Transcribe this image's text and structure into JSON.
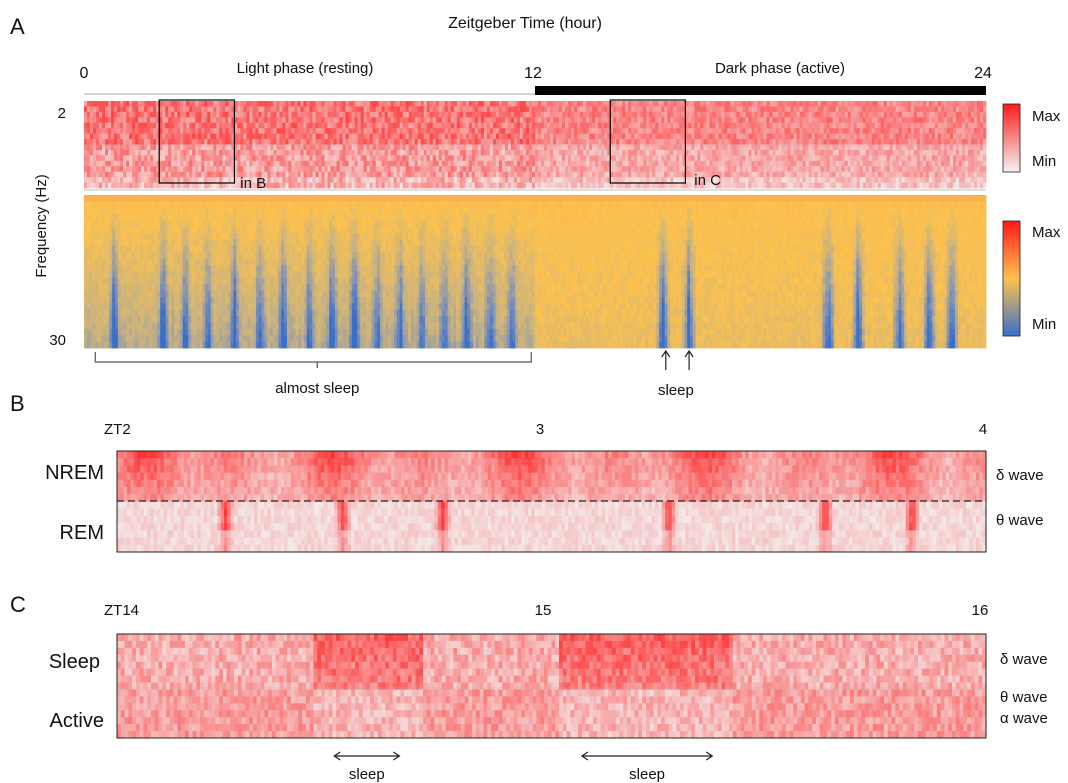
{
  "chart_data": [
    {
      "panel": "A",
      "type": "heatmap",
      "title": "Zeitgeber Time (hour)",
      "x_ticks": [
        "0",
        "12",
        "24"
      ],
      "x_range": [
        0,
        24
      ],
      "phase_labels": [
        "Light phase (resting)",
        "Dark phase (active)"
      ],
      "dark_phase_range": [
        12,
        24
      ],
      "ylabel": "Frequency (Hz)",
      "y_ticks": [
        "2",
        "30"
      ],
      "y_range": [
        2,
        30
      ],
      "inset_boxes": [
        {
          "label": "in B",
          "x_range": [
            2,
            4
          ]
        },
        {
          "label": "in C",
          "x_range": [
            14,
            16
          ]
        }
      ],
      "colorbars": [
        {
          "panel": "normalized-low",
          "max_label": "Max",
          "min_label": "Min",
          "colors": [
            "#f3f3f3",
            "#ff1a1a"
          ]
        },
        {
          "panel": "spectrogram",
          "max_label": "Max",
          "min_label": "Min",
          "colors": [
            "#3a6fc9",
            "#fdc24e",
            "#ff1a1a"
          ]
        }
      ],
      "sleep_bouts_zt": [
        0.8,
        2.1,
        2.7,
        3.3,
        4.0,
        4.7,
        5.3,
        6.0,
        6.6,
        7.2,
        7.8,
        8.4,
        9.0,
        9.6,
        10.2,
        10.8,
        11.4,
        15.4,
        16.1,
        19.8,
        20.6,
        21.7,
        22.5,
        23.1
      ],
      "annotations": [
        {
          "text": "almost sleep",
          "x_range": [
            0.3,
            11.9
          ]
        },
        {
          "text": "sleep",
          "x": [
            15.4,
            16.1
          ]
        }
      ]
    },
    {
      "panel": "B",
      "type": "heatmap",
      "x_ticks": [
        "ZT2",
        "3",
        "4"
      ],
      "x_range": [
        2,
        4
      ],
      "row_labels": [
        "NREM",
        "REM"
      ],
      "band_labels": [
        "δ wave",
        "θ wave"
      ],
      "rem_hotspots_zt": [
        2.25,
        2.52,
        2.75,
        3.27,
        3.63,
        3.83
      ]
    },
    {
      "panel": "C",
      "type": "heatmap",
      "x_ticks": [
        "ZT14",
        "15",
        "16"
      ],
      "x_range": [
        14,
        16
      ],
      "row_labels": [
        "Sleep",
        "Active"
      ],
      "band_labels": [
        "δ wave",
        "θ wave",
        "α wave"
      ],
      "sleep_periods": [
        {
          "text": "sleep",
          "x_range": [
            14.5,
            14.65
          ]
        },
        {
          "text": "sleep",
          "x_range": [
            15.07,
            15.37
          ]
        }
      ]
    }
  ],
  "panel_letters": [
    "A",
    "B",
    "C"
  ]
}
